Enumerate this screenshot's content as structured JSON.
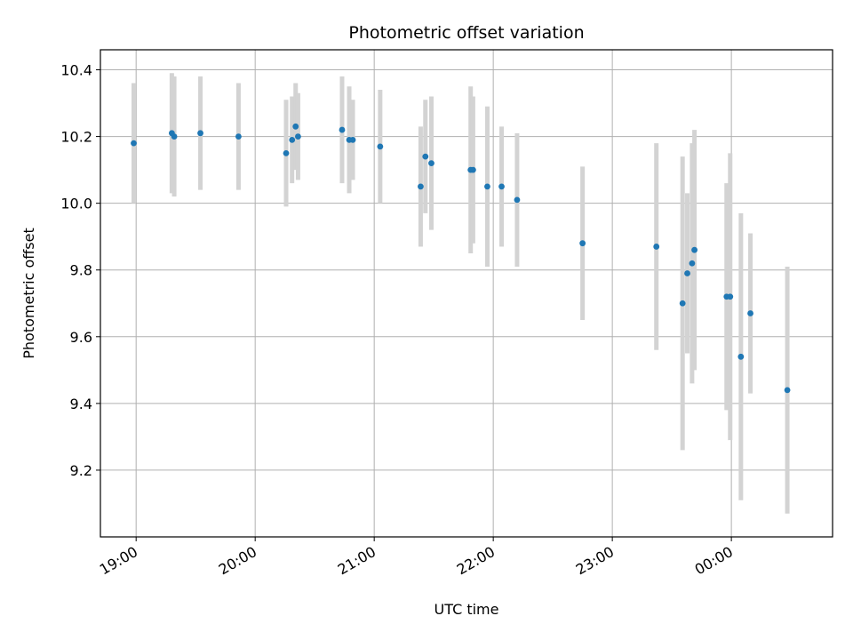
{
  "chart_data": {
    "type": "scatter",
    "title": "Photometric offset variation",
    "xlabel": "UTC time",
    "ylabel": "Photometric offset",
    "grid": true,
    "xlim_hours": [
      18.7,
      24.85
    ],
    "ylim": [
      9.0,
      10.46
    ],
    "x_ticks": [
      {
        "hour": 19.0,
        "label": "19:00"
      },
      {
        "hour": 20.0,
        "label": "20:00"
      },
      {
        "hour": 21.0,
        "label": "21:00"
      },
      {
        "hour": 22.0,
        "label": "22:00"
      },
      {
        "hour": 23.0,
        "label": "23:00"
      },
      {
        "hour": 24.0,
        "label": "00:00"
      }
    ],
    "y_ticks": [
      {
        "value": 9.2,
        "label": "9.2"
      },
      {
        "value": 9.4,
        "label": "9.4"
      },
      {
        "value": 9.6,
        "label": "9.6"
      },
      {
        "value": 9.8,
        "label": "9.8"
      },
      {
        "value": 10.0,
        "label": "10.0"
      },
      {
        "value": 10.2,
        "label": "10.2"
      },
      {
        "value": 10.4,
        "label": "10.4"
      }
    ],
    "colors": {
      "point": "#1f77b4",
      "errorbar": "#d3d3d3",
      "grid": "#b0b0b0",
      "axis": "#000000"
    },
    "points": [
      {
        "hour": 18.98,
        "y": 10.18,
        "err": 0.18
      },
      {
        "hour": 19.3,
        "y": 10.21,
        "err": 0.18
      },
      {
        "hour": 19.32,
        "y": 10.2,
        "err": 0.18
      },
      {
        "hour": 19.54,
        "y": 10.21,
        "err": 0.17
      },
      {
        "hour": 19.86,
        "y": 10.2,
        "err": 0.16
      },
      {
        "hour": 20.26,
        "y": 10.15,
        "err": 0.16
      },
      {
        "hour": 20.31,
        "y": 10.19,
        "err": 0.13
      },
      {
        "hour": 20.34,
        "y": 10.23,
        "err": 0.13
      },
      {
        "hour": 20.36,
        "y": 10.2,
        "err": 0.13
      },
      {
        "hour": 20.73,
        "y": 10.22,
        "err": 0.16
      },
      {
        "hour": 20.79,
        "y": 10.19,
        "err": 0.16
      },
      {
        "hour": 20.82,
        "y": 10.19,
        "err": 0.12
      },
      {
        "hour": 21.05,
        "y": 10.17,
        "err": 0.17
      },
      {
        "hour": 21.39,
        "y": 10.05,
        "err": 0.18
      },
      {
        "hour": 21.43,
        "y": 10.14,
        "err": 0.17
      },
      {
        "hour": 21.48,
        "y": 10.12,
        "err": 0.2
      },
      {
        "hour": 21.81,
        "y": 10.1,
        "err": 0.25
      },
      {
        "hour": 21.83,
        "y": 10.1,
        "err": 0.22
      },
      {
        "hour": 21.95,
        "y": 10.05,
        "err": 0.24
      },
      {
        "hour": 22.07,
        "y": 10.05,
        "err": 0.18
      },
      {
        "hour": 22.2,
        "y": 10.01,
        "err": 0.2
      },
      {
        "hour": 22.75,
        "y": 9.88,
        "err": 0.23
      },
      {
        "hour": 23.37,
        "y": 9.87,
        "err": 0.31
      },
      {
        "hour": 23.59,
        "y": 9.7,
        "err": 0.44
      },
      {
        "hour": 23.63,
        "y": 9.79,
        "err": 0.24
      },
      {
        "hour": 23.67,
        "y": 9.82,
        "err": 0.36
      },
      {
        "hour": 23.69,
        "y": 9.86,
        "err": 0.36
      },
      {
        "hour": 23.96,
        "y": 9.72,
        "err": 0.34
      },
      {
        "hour": 23.99,
        "y": 9.72,
        "err": 0.43
      },
      {
        "hour": 24.08,
        "y": 9.54,
        "err": 0.43
      },
      {
        "hour": 24.16,
        "y": 9.67,
        "err": 0.24
      },
      {
        "hour": 24.47,
        "y": 9.44,
        "err": 0.37
      }
    ]
  }
}
